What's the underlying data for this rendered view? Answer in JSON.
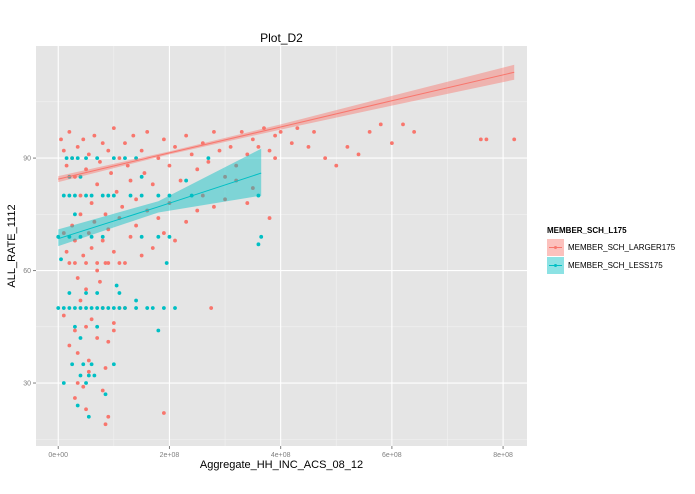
{
  "chart_data": {
    "type": "scatter",
    "title": "Plot_D2",
    "xlabel": "Aggregate_HH_INC_ACS_08_12",
    "ylabel": "ALL_RATE_1112",
    "xlim": [
      -40000000.0,
      843000000.0
    ],
    "ylim": [
      13.2,
      119.9
    ],
    "x_ticks": [
      0,
      200000000.0,
      400000000.0,
      600000000.0,
      800000000.0
    ],
    "x_tick_labels": [
      "0e+00",
      "2e+08",
      "4e+08",
      "6e+08",
      "8e+08"
    ],
    "y_ticks": [
      30,
      60,
      90
    ],
    "y_tick_labels": [
      "30",
      "60",
      "90"
    ],
    "grid": true,
    "background": "#e5e5e5",
    "legend": {
      "title": "MEMBER_SCH_L175",
      "position": "right",
      "entries": [
        "MEMBER_SCH_LARGER175",
        "MEMBER_SCH_LESS175"
      ]
    },
    "series": [
      {
        "name": "MEMBER_SCH_LARGER175",
        "color": "#f8766d",
        "points": [
          [
            5000000.0,
            95
          ],
          [
            10000000.0,
            92
          ],
          [
            15000000.0,
            88
          ],
          [
            20000000.0,
            97
          ],
          [
            25000000.0,
            90
          ],
          [
            30000000.0,
            85
          ],
          [
            35000000.0,
            93
          ],
          [
            40000000.0,
            80
          ],
          [
            45000000.0,
            95
          ],
          [
            50000000.0,
            87
          ],
          [
            55000000.0,
            91
          ],
          [
            60000000.0,
            78
          ],
          [
            65000000.0,
            96
          ],
          [
            70000000.0,
            83
          ],
          [
            75000000.0,
            89
          ],
          [
            80000000.0,
            94
          ],
          [
            85000000.0,
            75
          ],
          [
            90000000.0,
            92
          ],
          [
            95000000.0,
            86
          ],
          [
            100000000.0,
            98
          ],
          [
            105000000.0,
            81
          ],
          [
            110000000.0,
            90
          ],
          [
            115000000.0,
            77
          ],
          [
            120000000.0,
            94
          ],
          [
            125000000.0,
            88
          ],
          [
            130000000.0,
            84
          ],
          [
            135000000.0,
            96
          ],
          [
            140000000.0,
            79
          ],
          [
            150000000.0,
            92
          ],
          [
            155000000.0,
            86
          ],
          [
            160000000.0,
            97
          ],
          [
            170000000.0,
            83
          ],
          [
            180000000.0,
            90
          ],
          [
            190000000.0,
            95
          ],
          [
            200000000.0,
            88
          ],
          [
            210000000.0,
            93
          ],
          [
            220000000.0,
            84
          ],
          [
            230000000.0,
            96
          ],
          [
            240000000.0,
            91
          ],
          [
            250000000.0,
            87
          ],
          [
            260000000.0,
            94
          ],
          [
            270000000.0,
            89
          ],
          [
            280000000.0,
            97
          ],
          [
            290000000.0,
            92
          ],
          [
            300000000.0,
            85
          ],
          [
            310000000.0,
            93
          ],
          [
            320000000.0,
            88
          ],
          [
            330000000.0,
            97
          ],
          [
            340000000.0,
            91
          ],
          [
            350000000.0,
            95
          ],
          [
            360000000.0,
            93
          ],
          [
            370000000.0,
            98
          ],
          [
            380000000.0,
            92
          ],
          [
            390000000.0,
            96
          ],
          [
            400000000.0,
            97
          ],
          [
            420000000.0,
            94
          ],
          [
            430000000.0,
            98
          ],
          [
            450000000.0,
            93
          ],
          [
            460000000.0,
            97
          ],
          [
            480000000.0,
            90
          ],
          [
            500000000.0,
            88
          ],
          [
            520000000.0,
            93
          ],
          [
            540000000.0,
            91
          ],
          [
            560000000.0,
            97
          ],
          [
            580000000.0,
            99
          ],
          [
            600000000.0,
            94
          ],
          [
            620000000.0,
            99
          ],
          [
            640000000.0,
            97
          ],
          [
            760000000.0,
            95
          ],
          [
            770000000.0,
            95
          ],
          [
            820000000.0,
            95
          ],
          [
            10000000.0,
            70
          ],
          [
            15000000.0,
            65
          ],
          [
            20000000.0,
            62
          ],
          [
            25000000.0,
            72
          ],
          [
            30000000.0,
            68
          ],
          [
            35000000.0,
            58
          ],
          [
            40000000.0,
            75
          ],
          [
            45000000.0,
            64
          ],
          [
            50000000.0,
            55
          ],
          [
            55000000.0,
            70
          ],
          [
            60000000.0,
            66
          ],
          [
            65000000.0,
            73
          ],
          [
            70000000.0,
            60
          ],
          [
            75000000.0,
            57
          ],
          [
            80000000.0,
            68
          ],
          [
            85000000.0,
            62
          ],
          [
            90000000.0,
            71
          ],
          [
            100000000.0,
            65
          ],
          [
            110000000.0,
            74
          ],
          [
            120000000.0,
            62
          ],
          [
            130000000.0,
            69
          ],
          [
            140000000.0,
            72
          ],
          [
            150000000.0,
            64
          ],
          [
            160000000.0,
            76
          ],
          [
            170000000.0,
            66
          ],
          [
            180000000.0,
            74
          ],
          [
            190000000.0,
            70
          ],
          [
            200000000.0,
            78
          ],
          [
            210000000.0,
            68
          ],
          [
            230000000.0,
            73
          ],
          [
            250000000.0,
            76
          ],
          [
            260000000.0,
            80
          ],
          [
            280000000.0,
            77
          ],
          [
            300000000.0,
            79
          ],
          [
            320000000.0,
            84
          ],
          [
            340000000.0,
            78
          ],
          [
            350000000.0,
            82
          ],
          [
            380000000.0,
            74
          ],
          [
            390000000.0,
            90
          ],
          [
            10000000.0,
            48
          ],
          [
            20000000.0,
            40
          ],
          [
            30000000.0,
            44
          ],
          [
            35000000.0,
            38
          ],
          [
            40000000.0,
            52
          ],
          [
            50000000.0,
            45
          ],
          [
            55000000.0,
            36
          ],
          [
            60000000.0,
            47
          ],
          [
            70000000.0,
            42
          ],
          [
            80000000.0,
            50
          ],
          [
            85000000.0,
            34
          ],
          [
            90000000.0,
            41
          ],
          [
            100000000.0,
            44
          ],
          [
            110000000.0,
            50
          ],
          [
            45000000.0,
            29
          ],
          [
            50000000.0,
            23
          ],
          [
            35000000.0,
            30
          ],
          [
            85000000.0,
            19
          ],
          [
            90000000.0,
            21
          ],
          [
            30000000.0,
            26
          ],
          [
            100000000.0,
            46
          ],
          [
            120000000.0,
            50
          ],
          [
            275000000.0,
            50
          ],
          [
            190000000.0,
            22
          ],
          [
            55000000.0,
            33
          ],
          [
            80000000.0,
            28
          ],
          [
            30000000.0,
            62
          ],
          [
            50000000.0,
            62
          ],
          [
            70000000.0,
            62
          ],
          [
            90000000.0,
            62
          ],
          [
            110000000.0,
            62
          ]
        ],
        "fit": {
          "x": [
            0,
            200000000.0,
            400000000.0,
            600000000.0,
            820000000.0
          ],
          "y": [
            84.4,
            91.4,
            98.3,
            105.3,
            112.9
          ],
          "lower": [
            83.6,
            91.0,
            97.6,
            104.0,
            110.9
          ],
          "upper": [
            85.2,
            91.8,
            99.0,
            106.6,
            114.9
          ]
        }
      },
      {
        "name": "MEMBER_SCH_LESS175",
        "color": "#00bfc4",
        "points": [
          [
            0,
            50
          ],
          [
            10000000.0,
            50
          ],
          [
            20000000.0,
            50
          ],
          [
            30000000.0,
            50
          ],
          [
            40000000.0,
            50
          ],
          [
            50000000.0,
            50
          ],
          [
            60000000.0,
            50
          ],
          [
            70000000.0,
            50
          ],
          [
            80000000.0,
            50
          ],
          [
            90000000.0,
            50
          ],
          [
            100000000.0,
            50
          ],
          [
            110000000.0,
            50
          ],
          [
            120000000.0,
            50
          ],
          [
            140000000.0,
            50
          ],
          [
            160000000.0,
            50
          ],
          [
            170000000.0,
            50
          ],
          [
            190000000.0,
            50
          ],
          [
            210000000.0,
            50
          ],
          [
            10000000.0,
            80
          ],
          [
            20000000.0,
            80
          ],
          [
            30000000.0,
            80
          ],
          [
            50000000.0,
            80
          ],
          [
            60000000.0,
            80
          ],
          [
            80000000.0,
            80
          ],
          [
            90000000.0,
            80
          ],
          [
            100000000.0,
            80
          ],
          [
            130000000.0,
            80
          ],
          [
            150000000.0,
            80
          ],
          [
            180000000.0,
            80
          ],
          [
            200000000.0,
            80
          ],
          [
            240000000.0,
            80
          ],
          [
            360000000.0,
            80
          ],
          [
            15000000.0,
            90
          ],
          [
            25000000.0,
            90
          ],
          [
            35000000.0,
            90
          ],
          [
            50000000.0,
            90
          ],
          [
            70000000.0,
            90
          ],
          [
            100000000.0,
            90
          ],
          [
            120000000.0,
            90
          ],
          [
            140000000.0,
            90
          ],
          [
            270000000.0,
            90
          ],
          [
            0,
            69
          ],
          [
            20000000.0,
            69
          ],
          [
            40000000.0,
            69
          ],
          [
            60000000.0,
            69
          ],
          [
            80000000.0,
            69
          ],
          [
            150000000.0,
            69
          ],
          [
            180000000.0,
            69
          ],
          [
            200000000.0,
            69
          ],
          [
            365000000.0,
            69
          ],
          [
            360000000.0,
            67
          ],
          [
            20000000.0,
            85
          ],
          [
            40000000.0,
            85
          ],
          [
            150000000.0,
            85
          ],
          [
            230000000.0,
            84
          ],
          [
            30000000.0,
            75
          ],
          [
            5000000.0,
            63
          ],
          [
            20000000.0,
            54
          ],
          [
            50000000.0,
            54
          ],
          [
            70000000.0,
            54
          ],
          [
            105000000.0,
            56
          ],
          [
            110000000.0,
            54
          ],
          [
            140000000.0,
            52
          ],
          [
            180000000.0,
            44
          ],
          [
            40000000.0,
            42
          ],
          [
            30000000.0,
            45
          ],
          [
            70000000.0,
            45
          ],
          [
            10000000.0,
            30
          ],
          [
            25000000.0,
            35
          ],
          [
            40000000.0,
            32
          ],
          [
            45000000.0,
            35
          ],
          [
            55000000.0,
            32
          ],
          [
            60000000.0,
            35
          ],
          [
            65000000.0,
            32
          ],
          [
            50000000.0,
            30
          ],
          [
            85000000.0,
            27
          ],
          [
            35000000.0,
            24
          ],
          [
            55000000.0,
            21
          ],
          [
            100000000.0,
            35
          ],
          [
            195000000.0,
            62
          ]
        ],
        "fit": {
          "x": [
            0,
            180000000.0,
            365000000.0
          ],
          "y": [
            68.5,
            77,
            86
          ],
          "lower": [
            66.5,
            75.5,
            80
          ],
          "upper": [
            71,
            78.5,
            92.5
          ]
        }
      }
    ]
  }
}
